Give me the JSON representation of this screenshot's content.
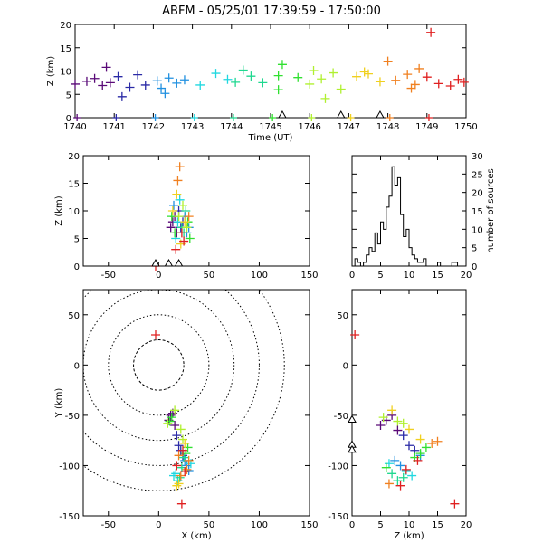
{
  "title": "ABFM - 05/25/01 17:39:59 - 17:50:00",
  "colors": [
    "#5a0a78",
    "#2a2aa6",
    "#2090e0",
    "#20d8e0",
    "#20d890",
    "#30e030",
    "#b0f030",
    "#f0d020",
    "#f08020",
    "#e02020"
  ],
  "stations_x": [
    -3,
    10,
    20
  ],
  "station_times": [
    1745.3,
    1746.8,
    1747.8
  ],
  "chart_data": [
    {
      "id": "time-height",
      "type": "scatter",
      "title": "ABFM - 05/25/01 17:39:59 - 17:50:00",
      "xlabel": "Time (UT)",
      "ylabel": "Z (km)",
      "xlim": [
        1740,
        1750
      ],
      "ylim": [
        0,
        20
      ],
      "xticks": [
        "1740",
        "1741",
        "1742",
        "1743",
        "1744",
        "1745",
        "1746",
        "1747",
        "1748",
        "1749",
        "1750"
      ],
      "yticks": [
        "0",
        "5",
        "10",
        "15",
        "20"
      ],
      "series": [
        {
          "x": [
            1740.0,
            1740.3,
            1740.5,
            1740.7,
            1740.9,
            1741.1,
            1741.4,
            1741.6,
            1741.8,
            1742.1,
            1742.2,
            1742.4,
            1742.6,
            1742.8,
            1743.2,
            1743.6,
            1743.9,
            1744.1,
            1744.3,
            1744.5,
            1744.8,
            1745.2,
            1745.3,
            1745.7,
            1746.0,
            1746.1,
            1746.3,
            1746.6,
            1746.8,
            1747.2,
            1747.5,
            1747.8,
            1748.0,
            1748.2,
            1748.5,
            1748.7,
            1748.8,
            1749.0,
            1749.3,
            1749.6,
            1749.8,
            1749.95,
            1740.8,
            1741.2,
            1742.3,
            1745.2,
            1746.4,
            1747.4,
            1748.6,
            1749.1
          ],
          "y": [
            7.2,
            7.8,
            8.4,
            6.9,
            7.5,
            8.8,
            6.5,
            9.2,
            7.0,
            7.9,
            6.3,
            8.5,
            7.4,
            8.1,
            7.0,
            9.5,
            8.2,
            7.6,
            10.2,
            8.9,
            7.5,
            9.0,
            11.4,
            8.6,
            7.2,
            10.1,
            8.3,
            9.6,
            6.1,
            8.8,
            9.4,
            7.7,
            12.1,
            8.0,
            9.3,
            7.1,
            10.5,
            8.7,
            7.3,
            6.8,
            8.2,
            7.6,
            10.8,
            4.5,
            5.2,
            6.0,
            4.1,
            9.8,
            6.3,
            18.3
          ]
        }
      ]
    },
    {
      "id": "xz",
      "type": "scatter",
      "xlabel": "",
      "ylabel": "Z (km)",
      "xlim": [
        -75,
        150
      ],
      "ylim": [
        0,
        20
      ],
      "xticks": [
        "-50",
        "0",
        "50",
        "100",
        "150"
      ],
      "yticks": [
        "0",
        "5",
        "10",
        "15",
        "20"
      ],
      "series": [
        {
          "x": [
            12,
            14,
            16,
            18,
            20,
            22,
            24,
            26,
            28,
            30,
            15,
            17,
            19,
            21,
            23,
            25,
            27,
            13,
            29,
            31,
            16,
            20,
            24,
            28,
            18,
            22,
            26,
            14,
            30,
            19,
            21,
            17,
            23,
            25
          ],
          "y": [
            7,
            8,
            9,
            6,
            10,
            7,
            8,
            9,
            6,
            7,
            11,
            5,
            8,
            12,
            7,
            6,
            10,
            9,
            8,
            5,
            6,
            9,
            11,
            7,
            13,
            4,
            8,
            10,
            9,
            15.5,
            18,
            3,
            6,
            4.5
          ]
        },
        {
          "x": [
            -3
          ],
          "y": [
            0
          ]
        }
      ]
    },
    {
      "id": "z-histogram",
      "type": "bar",
      "xlabel": "",
      "ylabel": "number of sources",
      "xlim": [
        0,
        20
      ],
      "ylim": [
        0,
        30
      ],
      "xticks": [
        "0",
        "5",
        "10",
        "15",
        "20"
      ],
      "yticks": [
        "0",
        "5",
        "10",
        "15",
        "20",
        "25",
        "30"
      ],
      "bin_edges": [
        0,
        0.5,
        1,
        1.5,
        2,
        2.5,
        3,
        3.5,
        4,
        4.5,
        5,
        5.5,
        6,
        6.5,
        7,
        7.5,
        8,
        8.5,
        9,
        9.5,
        10,
        10.5,
        11,
        11.5,
        12,
        12.5,
        13,
        13.5,
        14,
        14.5,
        15,
        15.5,
        16,
        16.5,
        17,
        17.5,
        18,
        18.5,
        19,
        19.5,
        20
      ],
      "values": [
        0,
        2,
        1,
        0,
        1,
        3,
        5,
        4,
        9,
        6,
        12,
        10,
        16,
        19,
        27,
        22,
        24,
        14,
        8,
        10,
        5,
        3,
        2,
        1,
        1,
        2,
        0,
        0,
        0,
        0,
        1,
        0,
        0,
        0,
        0,
        1,
        1,
        0,
        0,
        0
      ]
    },
    {
      "id": "plan-view",
      "type": "scatter",
      "xlabel": "X (km)",
      "ylabel": "Y (km)",
      "xlim": [
        -75,
        150
      ],
      "ylim": [
        -150,
        75
      ],
      "xticks": [
        "-50",
        "0",
        "50",
        "100",
        "150"
      ],
      "yticks": [
        "-150",
        "-100",
        "-50",
        "0",
        "50"
      ],
      "range_rings_km": [
        25,
        50,
        75,
        100,
        125
      ],
      "series": [
        {
          "x": [
            10,
            12,
            14,
            16,
            18,
            20,
            22,
            24,
            26,
            28,
            30,
            32,
            15,
            17,
            19,
            21,
            23,
            25,
            27,
            29,
            13,
            11,
            9,
            16,
            22,
            24,
            26,
            20,
            18,
            30,
            28,
            22,
            20,
            24,
            18,
            26
          ],
          "y": [
            -55,
            -50,
            -48,
            -60,
            -70,
            -80,
            -85,
            -90,
            -95,
            -100,
            -105,
            -98,
            -110,
            -108,
            -115,
            -112,
            -102,
            -92,
            -88,
            -82,
            -52,
            -56,
            -58,
            -45,
            -64,
            -74,
            -78,
            -118,
            -120,
            -95,
            -104,
            -110,
            -90,
            -85,
            -100,
            -106
          ]
        },
        {
          "x": [
            -3
          ],
          "y": [
            30
          ]
        },
        {
          "x": [
            23
          ],
          "y": [
            -138
          ]
        }
      ]
    },
    {
      "id": "zy",
      "type": "scatter",
      "xlabel": "Z (km)",
      "ylabel": "",
      "xlim": [
        0,
        20
      ],
      "ylim": [
        -150,
        75
      ],
      "xticks": [
        "0",
        "5",
        "10",
        "15",
        "20"
      ],
      "yticks": [
        "-150",
        "-100",
        "-50",
        "0",
        "50"
      ],
      "series": [
        {
          "x": [
            5,
            6,
            7,
            8,
            9,
            10,
            11,
            12,
            7.5,
            8.5,
            9.5,
            6.5,
            10.5,
            7,
            8,
            9,
            6,
            11,
            12,
            13,
            5.5,
            8,
            9,
            7,
            10,
            12,
            14,
            15,
            6.5,
            8.5,
            11.5,
            9.5
          ],
          "y": [
            -60,
            -55,
            -50,
            -65,
            -70,
            -80,
            -85,
            -90,
            -95,
            -100,
            -105,
            -98,
            -110,
            -108,
            -115,
            -112,
            -102,
            -92,
            -88,
            -82,
            -52,
            -56,
            -58,
            -45,
            -64,
            -74,
            -78,
            -76,
            -118,
            -120,
            -95,
            -104
          ]
        },
        {
          "x": [
            0.5
          ],
          "y": [
            30
          ]
        },
        {
          "x": [
            18
          ],
          "y": [
            -138
          ]
        }
      ]
    }
  ]
}
